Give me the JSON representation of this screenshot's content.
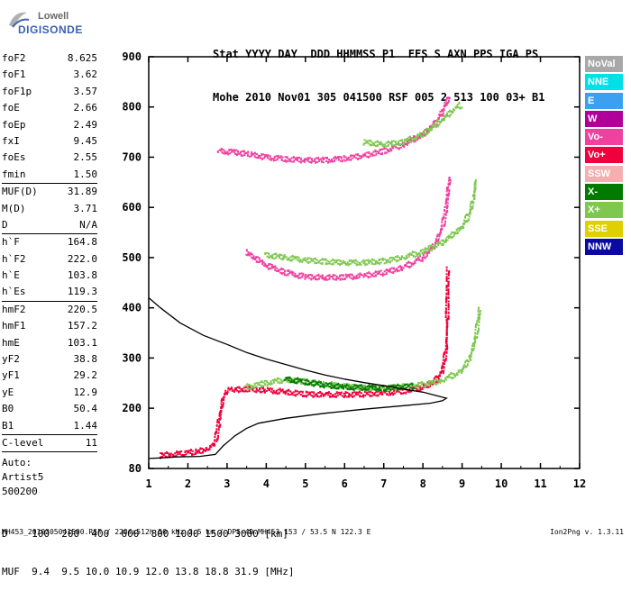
{
  "logo": {
    "line1": "Lowell",
    "line2": "DIGISONDE"
  },
  "header": {
    "row1": "Stat YYYY DAY  DDD HHMMSS P1  FFS S AXN PPS IGA PS",
    "row2": "Mohe 2010 Nov01 305 041500 RSF 005 2 513 100 03+ B1"
  },
  "params": {
    "group1": [
      {
        "name": "foF2",
        "value": "8.625"
      },
      {
        "name": "foF1",
        "value": "3.62"
      },
      {
        "name": "foF1p",
        "value": "3.57"
      },
      {
        "name": "foE",
        "value": "2.66"
      },
      {
        "name": "foEp",
        "value": "2.49"
      },
      {
        "name": "fxI",
        "value": "9.45"
      },
      {
        "name": "foEs",
        "value": "2.55"
      },
      {
        "name": "fmin",
        "value": "1.50"
      }
    ],
    "group2": [
      {
        "name": "MUF(D)",
        "value": "31.89"
      },
      {
        "name": "M(D)",
        "value": "3.71"
      },
      {
        "name": "D",
        "value": "N/A"
      }
    ],
    "group3": [
      {
        "name": "h`F",
        "value": "164.8"
      },
      {
        "name": "h`F2",
        "value": "222.0"
      },
      {
        "name": "h`E",
        "value": "103.8"
      },
      {
        "name": "h`Es",
        "value": "119.3"
      }
    ],
    "group4": [
      {
        "name": "hmF2",
        "value": "220.5"
      },
      {
        "name": "hmF1",
        "value": "157.2"
      },
      {
        "name": "hmE",
        "value": "103.1"
      },
      {
        "name": "yF2",
        "value": "38.8"
      },
      {
        "name": "yF1",
        "value": "29.2"
      },
      {
        "name": "yE",
        "value": "12.9"
      },
      {
        "name": "B0",
        "value": "50.4"
      },
      {
        "name": "B1",
        "value": "1.44"
      }
    ],
    "group5": [
      {
        "name": "C-level",
        "value": "11"
      }
    ],
    "auto": [
      "Auto:",
      "Artist5",
      "500200"
    ]
  },
  "legend": [
    {
      "label": "NoVal",
      "color": "#a8a8a8"
    },
    {
      "label": "NNE",
      "color": "#00e0e8"
    },
    {
      "label": "E",
      "color": "#3aa0f0"
    },
    {
      "label": "W",
      "color": "#b0009c"
    },
    {
      "label": "Vo-",
      "color": "#f040a0"
    },
    {
      "label": "Vo+",
      "color": "#f0003c"
    },
    {
      "label": "SSW",
      "color": "#f4b0b0"
    },
    {
      "label": "X-",
      "color": "#007a00"
    },
    {
      "label": "X+",
      "color": "#7ec850"
    },
    {
      "label": "SSE",
      "color": "#e0d000"
    },
    {
      "label": "NNW",
      "color": "#0a0aa0"
    }
  ],
  "mufTable": {
    "row1": "D    100  200  400  600  800 1000 1500 3000 [km]",
    "row2": "MUF  9.4  9.5 10.0 10.9 12.0 13.8 18.8 31.9 [MHz]"
  },
  "footer": {
    "left": "MH453_2010305041500.RSF / 220fx512h 50 kHz 2.5 km / DPS-4D MH453 153 / 53.5 N 122.3 E",
    "right": "Ion2Png v. 1.3.11"
  },
  "chart_data": {
    "type": "scatter",
    "xlim": [
      1,
      12
    ],
    "ylim": [
      80,
      900
    ],
    "xticks": [
      1,
      2,
      3,
      4,
      5,
      6,
      7,
      8,
      9,
      10,
      11,
      12
    ],
    "yticks": [
      80,
      200,
      300,
      400,
      500,
      600,
      700,
      800,
      900
    ],
    "grid": false,
    "legend_position": "right",
    "series": [
      {
        "color": "#f0003c",
        "points": [
          [
            1.3,
            106
          ],
          [
            1.6,
            108
          ],
          [
            1.9,
            110
          ],
          [
            2.2,
            113
          ],
          [
            2.5,
            118
          ],
          [
            2.7,
            130
          ],
          [
            2.8,
            175
          ],
          [
            2.9,
            220
          ],
          [
            3.0,
            235
          ],
          [
            3.2,
            237
          ],
          [
            3.5,
            238
          ],
          [
            4.0,
            236
          ],
          [
            4.5,
            232
          ],
          [
            5.0,
            228
          ],
          [
            5.5,
            227
          ],
          [
            6.0,
            227
          ],
          [
            6.5,
            228
          ],
          [
            7.0,
            230
          ],
          [
            7.5,
            234
          ],
          [
            8.0,
            242
          ],
          [
            8.3,
            252
          ],
          [
            8.5,
            275
          ],
          [
            8.6,
            320
          ],
          [
            8.62,
            380
          ],
          [
            8.63,
            450
          ],
          [
            8.64,
            480
          ]
        ]
      },
      {
        "color": "#7ec850",
        "points": [
          [
            3.5,
            242
          ],
          [
            4.0,
            250
          ],
          [
            4.5,
            257
          ],
          [
            5.0,
            253
          ],
          [
            5.5,
            248
          ],
          [
            6.0,
            244
          ],
          [
            6.5,
            241
          ],
          [
            7.0,
            240
          ],
          [
            7.5,
            243
          ],
          [
            8.0,
            247
          ],
          [
            8.5,
            255
          ],
          [
            9.0,
            275
          ],
          [
            9.2,
            300
          ],
          [
            9.35,
            340
          ],
          [
            9.42,
            380
          ],
          [
            9.45,
            400
          ]
        ]
      },
      {
        "color": "#007a00",
        "points": [
          [
            4.5,
            258
          ],
          [
            5.0,
            252
          ],
          [
            5.5,
            246
          ],
          [
            6.0,
            242
          ],
          [
            7.0,
            240
          ],
          [
            7.8,
            244
          ]
        ]
      },
      {
        "color": "#f040a0",
        "points": [
          [
            3.5,
            510
          ],
          [
            4.0,
            485
          ],
          [
            4.5,
            470
          ],
          [
            5.0,
            462
          ],
          [
            5.5,
            460
          ],
          [
            6.0,
            461
          ],
          [
            6.5,
            464
          ],
          [
            7.0,
            470
          ],
          [
            7.5,
            480
          ],
          [
            8.0,
            500
          ],
          [
            8.3,
            525
          ],
          [
            8.5,
            560
          ],
          [
            8.6,
            600
          ],
          [
            8.65,
            640
          ],
          [
            8.7,
            660
          ]
        ]
      },
      {
        "color": "#7ec850",
        "points": [
          [
            4.0,
            505
          ],
          [
            4.5,
            500
          ],
          [
            5.0,
            495
          ],
          [
            5.5,
            492
          ],
          [
            6.0,
            490
          ],
          [
            6.5,
            490
          ],
          [
            7.0,
            493
          ],
          [
            7.5,
            500
          ],
          [
            8.0,
            512
          ],
          [
            8.5,
            530
          ],
          [
            9.0,
            560
          ],
          [
            9.2,
            590
          ],
          [
            9.3,
            620
          ],
          [
            9.35,
            655
          ]
        ]
      },
      {
        "color": "#f040a0",
        "points": [
          [
            2.8,
            712
          ],
          [
            3.2,
            710
          ],
          [
            3.6,
            705
          ],
          [
            4.0,
            700
          ],
          [
            4.5,
            696
          ],
          [
            5.0,
            694
          ],
          [
            5.5,
            694
          ],
          [
            6.0,
            697
          ],
          [
            6.5,
            703
          ],
          [
            7.0,
            712
          ],
          [
            7.5,
            725
          ],
          [
            8.0,
            745
          ],
          [
            8.3,
            765
          ],
          [
            8.5,
            790
          ],
          [
            8.6,
            810
          ],
          [
            8.7,
            820
          ]
        ]
      },
      {
        "color": "#7ec850",
        "points": [
          [
            6.5,
            730
          ],
          [
            7.0,
            725
          ],
          [
            7.5,
            730
          ],
          [
            8.0,
            745
          ],
          [
            8.5,
            775
          ],
          [
            8.8,
            795
          ],
          [
            9.0,
            805
          ]
        ]
      }
    ],
    "profile": {
      "color": "#000000",
      "points": [
        [
          1.0,
          420
        ],
        [
          1.3,
          400
        ],
        [
          1.8,
          370
        ],
        [
          2.4,
          345
        ],
        [
          3.0,
          327
        ],
        [
          3.5,
          311
        ],
        [
          4.0,
          298
        ],
        [
          4.5,
          287
        ],
        [
          5.0,
          276
        ],
        [
          5.5,
          266
        ],
        [
          6.0,
          258
        ],
        [
          6.5,
          251
        ],
        [
          7.0,
          245
        ],
        [
          7.5,
          238
        ],
        [
          8.0,
          232
        ],
        [
          8.3,
          226
        ],
        [
          8.5,
          222
        ],
        [
          8.6,
          220
        ],
        [
          8.5,
          215
        ],
        [
          8.2,
          210
        ],
        [
          7.5,
          205
        ],
        [
          6.5,
          198
        ],
        [
          5.5,
          190
        ],
        [
          4.5,
          180
        ],
        [
          3.8,
          170
        ],
        [
          3.5,
          160
        ],
        [
          3.2,
          145
        ],
        [
          2.9,
          125
        ],
        [
          2.7,
          108
        ],
        [
          2.3,
          104
        ],
        [
          1.7,
          103
        ],
        [
          1.3,
          101
        ],
        [
          1.0,
          100
        ]
      ]
    }
  }
}
